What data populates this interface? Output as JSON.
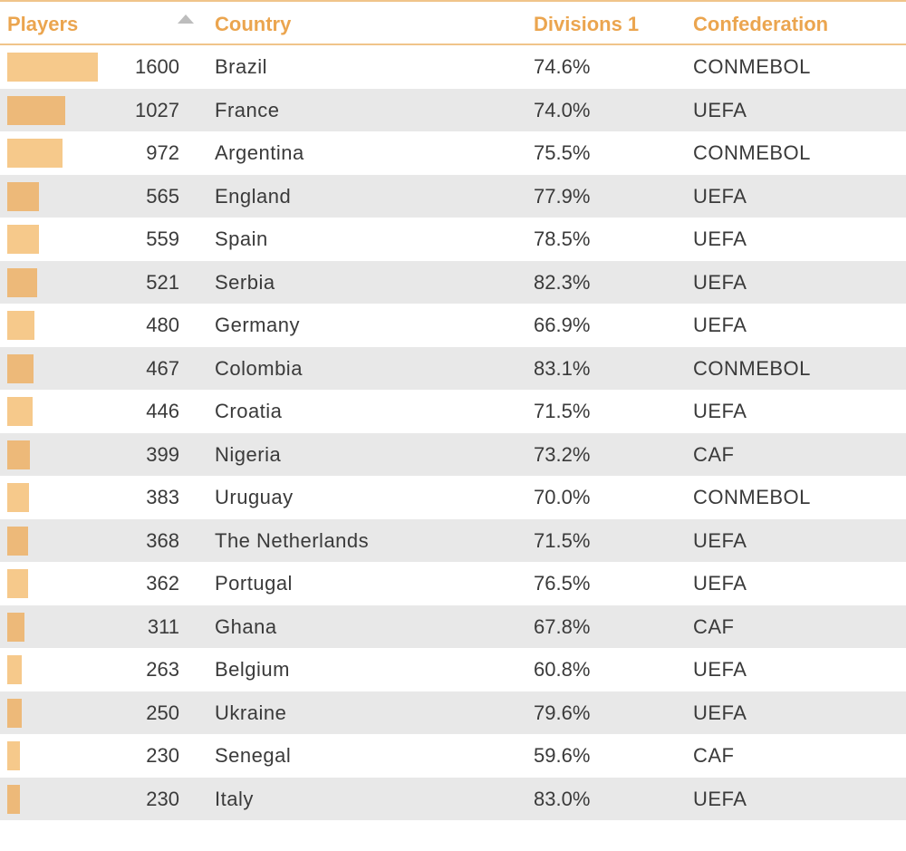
{
  "header": {
    "players": "Players",
    "country": "Country",
    "divisions": "Divisions 1",
    "confederation": "Confederation",
    "sort_icon": "sort-ascending-icon"
  },
  "colors": {
    "header_text": "#eba54f",
    "bar": "#f6c98b",
    "alt_row": "#e8e8e8"
  },
  "rows": [
    {
      "players": "1600",
      "players_value": 1600,
      "country": "Brazil",
      "divisions": "74.6%",
      "confederation": "CONMEBOL"
    },
    {
      "players": "1027",
      "players_value": 1027,
      "country": "France",
      "divisions": "74.0%",
      "confederation": "UEFA"
    },
    {
      "players": "972",
      "players_value": 972,
      "country": "Argentina",
      "divisions": "75.5%",
      "confederation": "CONMEBOL"
    },
    {
      "players": "565",
      "players_value": 565,
      "country": "England",
      "divisions": "77.9%",
      "confederation": "UEFA"
    },
    {
      "players": "559",
      "players_value": 559,
      "country": "Spain",
      "divisions": "78.5%",
      "confederation": "UEFA"
    },
    {
      "players": "521",
      "players_value": 521,
      "country": "Serbia",
      "divisions": "82.3%",
      "confederation": "UEFA"
    },
    {
      "players": "480",
      "players_value": 480,
      "country": "Germany",
      "divisions": "66.9%",
      "confederation": "UEFA"
    },
    {
      "players": "467",
      "players_value": 467,
      "country": "Colombia",
      "divisions": "83.1%",
      "confederation": "CONMEBOL"
    },
    {
      "players": "446",
      "players_value": 446,
      "country": "Croatia",
      "divisions": "71.5%",
      "confederation": "UEFA"
    },
    {
      "players": "399",
      "players_value": 399,
      "country": "Nigeria",
      "divisions": "73.2%",
      "confederation": "CAF"
    },
    {
      "players": "383",
      "players_value": 383,
      "country": "Uruguay",
      "divisions": "70.0%",
      "confederation": "CONMEBOL"
    },
    {
      "players": "368",
      "players_value": 368,
      "country": "The Netherlands",
      "divisions": "71.5%",
      "confederation": "UEFA"
    },
    {
      "players": "362",
      "players_value": 362,
      "country": "Portugal",
      "divisions": "76.5%",
      "confederation": "UEFA"
    },
    {
      "players": "311",
      "players_value": 311,
      "country": "Ghana",
      "divisions": "67.8%",
      "confederation": "CAF"
    },
    {
      "players": "263",
      "players_value": 263,
      "country": "Belgium",
      "divisions": "60.8%",
      "confederation": "UEFA"
    },
    {
      "players": "250",
      "players_value": 250,
      "country": "Ukraine",
      "divisions": "79.6%",
      "confederation": "UEFA"
    },
    {
      "players": "230",
      "players_value": 230,
      "country": "Senegal",
      "divisions": "59.6%",
      "confederation": "CAF"
    },
    {
      "players": "230",
      "players_value": 230,
      "country": "Italy",
      "divisions": "83.0%",
      "confederation": "UEFA"
    }
  ]
}
